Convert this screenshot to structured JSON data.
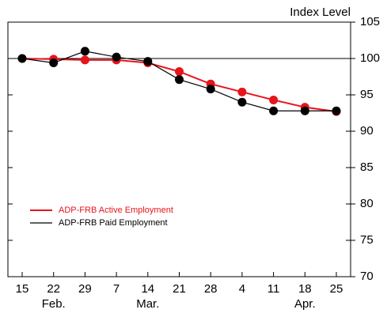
{
  "chart_data": {
    "type": "line",
    "y_axis_label": "Index Level",
    "categories": [
      "15",
      "22",
      "29",
      "7",
      "14",
      "21",
      "28",
      "4",
      "11",
      "18",
      "25"
    ],
    "months": [
      null,
      "Feb.",
      null,
      null,
      "Mar.",
      null,
      null,
      null,
      null,
      "Apr.",
      null
    ],
    "series": [
      {
        "name": "ADP-FRB Active Employment",
        "color": "#e8141b",
        "values": [
          100,
          99.9,
          99.8,
          99.8,
          99.4,
          98.2,
          96.5,
          95.4,
          94.3,
          93.3,
          92.7
        ]
      },
      {
        "name": "ADP-FRB Paid Employment",
        "color": "#000000",
        "values": [
          100,
          99.4,
          101.0,
          100.2,
          99.6,
          97.1,
          95.8,
          94.0,
          92.8,
          92.8,
          92.8
        ]
      }
    ],
    "reference_line": 100,
    "ylim": [
      70,
      105
    ],
    "yticks": [
      70,
      75,
      80,
      85,
      90,
      95,
      100,
      105
    ],
    "legend": "lower-left"
  }
}
